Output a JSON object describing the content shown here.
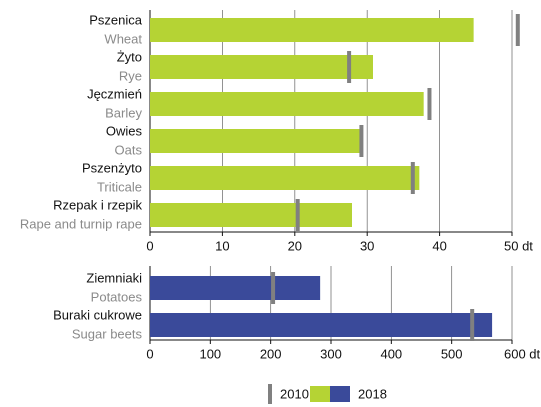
{
  "chart_data": [
    {
      "type": "bar",
      "orientation": "horizontal",
      "categories": [
        "Pszenica",
        "Żyto",
        "Jęczmień",
        "Owies",
        "Pszenżyto",
        "Rzepak i rzepik"
      ],
      "categories_en": [
        "Wheat",
        "Rye",
        "Barley",
        "Oats",
        "Triticale",
        "Rape and turnip rape"
      ],
      "values": [
        44.7,
        30.8,
        37.8,
        29.4,
        37.2,
        27.9
      ],
      "values_2010": [
        50.8,
        27.5,
        38.6,
        29.2,
        36.3,
        20.4
      ],
      "color": "#b5d334",
      "xlim": [
        0,
        53
      ],
      "xticks": [
        0,
        10,
        20,
        30,
        40,
        {
          "value": 50,
          "label": "50 dt"
        }
      ],
      "grid": true
    },
    {
      "type": "bar",
      "orientation": "horizontal",
      "categories": [
        "Ziemniaki",
        "Buraki cukrowe"
      ],
      "categories_en": [
        "Potatoes",
        "Sugar beets"
      ],
      "values": [
        282,
        567
      ],
      "values_2010": [
        204,
        534
      ],
      "color": "#3a4a9a",
      "xlim": [
        0,
        630
      ],
      "xticks": [
        0,
        100,
        200,
        300,
        400,
        500,
        {
          "value": 600,
          "label": "600 dt"
        }
      ],
      "grid": true
    }
  ],
  "marker_color": "#808080",
  "legend": [
    {
      "name": "2010"
    },
    {
      "name": "2018"
    }
  ]
}
